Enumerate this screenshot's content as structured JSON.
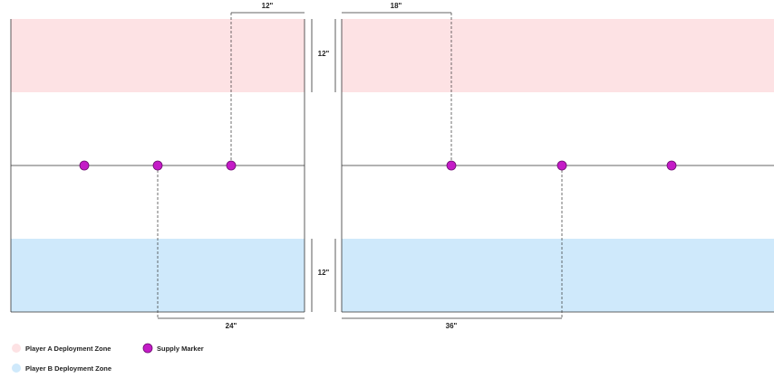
{
  "colors": {
    "zone_a": "#fde2e4",
    "zone_b": "#cfe9fb",
    "marker_fill": "#c41bc7",
    "marker_stroke": "#6a0e6d",
    "line": "#333333"
  },
  "dimensions": {
    "left_top": "12\"",
    "left_bottom": "24\"",
    "right_top": "18\"",
    "right_bottom": "36\"",
    "zone_a_depth": "12\"",
    "zone_b_depth": "12\""
  },
  "legend": {
    "zone_a": "Player A Deployment Zone",
    "zone_b": "Player B Deployment Zone",
    "marker": "Supply Marker"
  },
  "icons": {
    "marker": "supply-marker-icon"
  }
}
